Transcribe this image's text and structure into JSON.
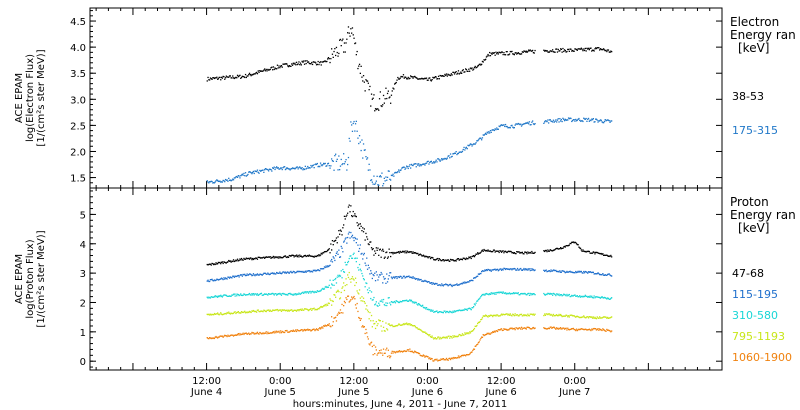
{
  "chart_data": [
    {
      "type": "scatter",
      "panel": "electron",
      "ylabel_lines": [
        "ACE EPAM",
        "log(Electron Flux)",
        "[1/(cm²s ster MeV)]"
      ],
      "ylim": [
        1.3,
        4.75
      ],
      "yticks": [
        "1.5",
        "2.0",
        "2.5",
        "3.0",
        "3.5",
        "4.0",
        "4.5"
      ],
      "legend_title": [
        "Electron",
        "Energy ran",
        "[keV]"
      ],
      "series": [
        {
          "name": "38-53",
          "color": "#000000",
          "points": [
            [
              0,
              3.4
            ],
            [
              6,
              3.45
            ],
            [
              12,
              3.65
            ],
            [
              16,
              3.72
            ],
            [
              19,
              3.7
            ],
            [
              21,
              3.92
            ],
            [
              22.5,
              4.05
            ],
            [
              23.5,
              4.42
            ],
            [
              24.5,
              3.8
            ],
            [
              25.5,
              3.4
            ],
            [
              27,
              2.95
            ],
            [
              28,
              2.98
            ],
            [
              30,
              3.1
            ],
            [
              31,
              3.42
            ],
            [
              32,
              3.45
            ],
            [
              36,
              3.38
            ],
            [
              40,
              3.5
            ],
            [
              44,
              3.62
            ],
            [
              46,
              3.88
            ],
            [
              50,
              3.9
            ],
            [
              52,
              3.92
            ],
            [
              56,
              3.95
            ],
            [
              60,
              3.95
            ],
            [
              64,
              3.98
            ],
            [
              66,
              3.92
            ]
          ]
        },
        {
          "name": "175-315",
          "color": "#1f77c8",
          "points": [
            [
              0,
              1.42
            ],
            [
              4,
              1.48
            ],
            [
              7,
              1.6
            ],
            [
              12,
              1.7
            ],
            [
              15,
              1.68
            ],
            [
              18,
              1.75
            ],
            [
              21,
              1.78
            ],
            [
              22.8,
              1.8
            ],
            [
              23.5,
              2.5
            ],
            [
              24,
              2.6
            ],
            [
              25,
              2.2
            ],
            [
              26,
              1.8
            ],
            [
              27,
              1.55
            ],
            [
              28,
              1.45
            ],
            [
              30,
              1.52
            ],
            [
              32,
              1.7
            ],
            [
              34,
              1.75
            ],
            [
              38,
              1.85
            ],
            [
              41,
              2.0
            ],
            [
              44,
              2.2
            ],
            [
              46,
              2.4
            ],
            [
              48,
              2.5
            ],
            [
              50,
              2.5
            ],
            [
              52,
              2.55
            ],
            [
              58,
              2.62
            ],
            [
              62,
              2.62
            ],
            [
              66,
              2.58
            ]
          ]
        }
      ]
    },
    {
      "type": "scatter",
      "panel": "proton",
      "ylabel_lines": [
        "ACE EPAM",
        "log(Proton Flux)",
        "[1/(cm²s ster MeV)]"
      ],
      "ylim": [
        -0.3,
        5.9
      ],
      "yticks": [
        "0",
        "1",
        "2",
        "3",
        "4",
        "5"
      ],
      "legend_title": [
        "Proton",
        "Energy ran",
        "[keV]"
      ],
      "series": [
        {
          "name": "47-68",
          "color": "#000000",
          "points": [
            [
              0,
              3.3
            ],
            [
              6,
              3.5
            ],
            [
              10,
              3.55
            ],
            [
              14,
              3.6
            ],
            [
              18,
              3.6
            ],
            [
              20,
              3.85
            ],
            [
              22,
              4.5
            ],
            [
              23,
              5.3
            ],
            [
              24,
              4.9
            ],
            [
              25,
              4.6
            ],
            [
              26,
              4.2
            ],
            [
              27,
              3.75
            ],
            [
              29,
              3.7
            ],
            [
              33,
              3.75
            ],
            [
              37,
              3.5
            ],
            [
              40,
              3.45
            ],
            [
              43,
              3.55
            ],
            [
              45,
              3.8
            ],
            [
              48,
              3.75
            ],
            [
              52,
              3.7
            ],
            [
              56,
              3.8
            ],
            [
              58,
              3.9
            ],
            [
              60,
              4.1
            ],
            [
              61,
              3.8
            ],
            [
              62,
              3.75
            ],
            [
              66,
              3.6
            ]
          ]
        },
        {
          "name": "115-195",
          "color": "#1f6fcc",
          "points": [
            [
              0,
              2.75
            ],
            [
              6,
              2.95
            ],
            [
              10,
              3.0
            ],
            [
              14,
              3.05
            ],
            [
              18,
              3.1
            ],
            [
              20,
              3.3
            ],
            [
              22,
              3.8
            ],
            [
              23,
              4.3
            ],
            [
              24,
              4.2
            ],
            [
              25,
              3.8
            ],
            [
              26,
              3.4
            ],
            [
              27,
              2.9
            ],
            [
              29,
              2.85
            ],
            [
              33,
              2.9
            ],
            [
              37,
              2.65
            ],
            [
              40,
              2.6
            ],
            [
              43,
              2.75
            ],
            [
              45,
              3.1
            ],
            [
              48,
              3.15
            ],
            [
              52,
              3.15
            ],
            [
              56,
              3.1
            ],
            [
              60,
              3.05
            ],
            [
              62,
              3.05
            ],
            [
              66,
              2.95
            ]
          ]
        },
        {
          "name": "310-580",
          "color": "#19d6d6",
          "points": [
            [
              0,
              2.2
            ],
            [
              6,
              2.3
            ],
            [
              10,
              2.3
            ],
            [
              14,
              2.3
            ],
            [
              18,
              2.4
            ],
            [
              20,
              2.6
            ],
            [
              22,
              3.0
            ],
            [
              23,
              3.6
            ],
            [
              24,
              3.6
            ],
            [
              25,
              3.1
            ],
            [
              26,
              2.6
            ],
            [
              27,
              2.1
            ],
            [
              29,
              2.0
            ],
            [
              33,
              2.1
            ],
            [
              37,
              1.7
            ],
            [
              40,
              1.7
            ],
            [
              43,
              1.8
            ],
            [
              45,
              2.3
            ],
            [
              48,
              2.35
            ],
            [
              52,
              2.3
            ],
            [
              56,
              2.3
            ],
            [
              60,
              2.25
            ],
            [
              64,
              2.2
            ],
            [
              66,
              2.15
            ]
          ]
        },
        {
          "name": "795-1193",
          "color": "#c8e619",
          "points": [
            [
              0,
              1.6
            ],
            [
              6,
              1.7
            ],
            [
              10,
              1.75
            ],
            [
              14,
              1.75
            ],
            [
              18,
              1.8
            ],
            [
              20,
              2.0
            ],
            [
              22,
              2.4
            ],
            [
              23,
              2.9
            ],
            [
              24,
              2.8
            ],
            [
              25,
              2.3
            ],
            [
              26,
              1.8
            ],
            [
              27,
              1.3
            ],
            [
              29,
              1.2
            ],
            [
              33,
              1.3
            ],
            [
              37,
              0.8
            ],
            [
              40,
              0.85
            ],
            [
              43,
              1.0
            ],
            [
              45,
              1.55
            ],
            [
              48,
              1.6
            ],
            [
              52,
              1.6
            ],
            [
              56,
              1.6
            ],
            [
              60,
              1.55
            ],
            [
              64,
              1.5
            ],
            [
              66,
              1.5
            ]
          ]
        },
        {
          "name": "1060-1900",
          "color": "#f0820f",
          "points": [
            [
              0,
              0.8
            ],
            [
              6,
              0.95
            ],
            [
              10,
              1.0
            ],
            [
              14,
              1.05
            ],
            [
              18,
              1.1
            ],
            [
              20,
              1.3
            ],
            [
              22,
              1.8
            ],
            [
              23,
              2.2
            ],
            [
              24,
              2.1
            ],
            [
              25,
              1.5
            ],
            [
              26,
              0.9
            ],
            [
              27,
              0.4
            ],
            [
              29,
              0.3
            ],
            [
              33,
              0.4
            ],
            [
              37,
              0.05
            ],
            [
              40,
              0.1
            ],
            [
              43,
              0.3
            ],
            [
              45,
              0.9
            ],
            [
              48,
              1.1
            ],
            [
              52,
              1.15
            ],
            [
              56,
              1.15
            ],
            [
              60,
              1.1
            ],
            [
              64,
              1.1
            ],
            [
              66,
              1.05
            ]
          ]
        }
      ]
    }
  ],
  "x_axis": {
    "range_hours": [
      -19,
      84
    ],
    "gap_hours": [
      53.5,
      54.8
    ],
    "tick_labels": [
      {
        "t": 0,
        "time": "12:00",
        "day": "June 4"
      },
      {
        "t": 12,
        "time": "0:00",
        "day": "June 5"
      },
      {
        "t": 24,
        "time": "12:00",
        "day": "June 5"
      },
      {
        "t": 36,
        "time": "0:00",
        "day": "June 6"
      },
      {
        "t": 48,
        "time": "12:00",
        "day": "June 6"
      },
      {
        "t": 60,
        "time": "0:00",
        "day": "June 7"
      }
    ],
    "xlabel": "hours:minutes, June  4, 2011 - June  7, 2011"
  }
}
